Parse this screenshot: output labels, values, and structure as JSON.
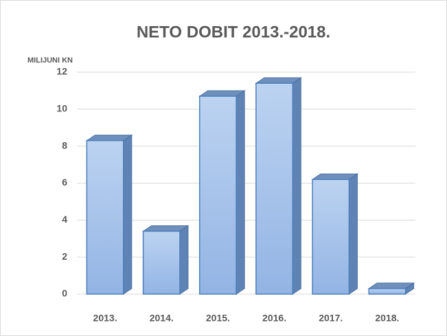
{
  "chart_data": {
    "type": "bar",
    "title": "NETO DOBIT 2013.-2018.",
    "y_label": "MILIJUNI KN",
    "categories": [
      "2013.",
      "2014.",
      "2015.",
      "2016.",
      "2017.",
      "2018."
    ],
    "values": [
      8.3,
      3.4,
      10.7,
      11.4,
      6.2,
      0.3
    ],
    "color": "#a7c4ec",
    "ylim": [
      0,
      12
    ],
    "yticks": [
      0,
      2,
      4,
      6,
      8,
      10,
      12
    ],
    "grid": true
  }
}
